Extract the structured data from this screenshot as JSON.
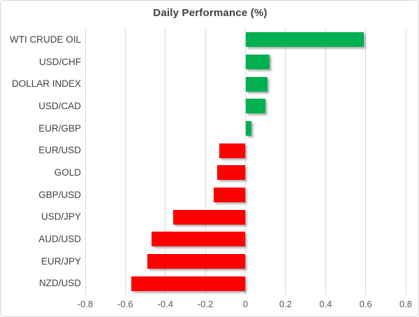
{
  "chart_data": {
    "type": "bar",
    "orientation": "horizontal",
    "title": "Daily Performance (%)",
    "categories": [
      "WTI CRUDE OIL",
      "USD/CHF",
      "DOLLAR INDEX",
      "USD/CAD",
      "EUR/GBP",
      "EUR/USD",
      "GOLD",
      "GBP/USD",
      "USD/JPY",
      "AUD/USD",
      "EUR/JPY",
      "NZD/USD"
    ],
    "values": [
      0.59,
      0.12,
      0.11,
      0.1,
      0.03,
      -0.13,
      -0.14,
      -0.16,
      -0.36,
      -0.47,
      -0.49,
      -0.57
    ],
    "xlim": [
      -0.8,
      0.8
    ],
    "xtick_values": [
      -0.8,
      -0.6,
      -0.4,
      -0.2,
      0,
      0.2,
      0.4,
      0.6,
      0.8
    ],
    "xtick_labels": [
      "-0.8",
      "-0.6",
      "-0.4",
      "-0.2",
      "0",
      "0.2",
      "0.4",
      "0.6",
      "0.8"
    ],
    "xlabel": "",
    "ylabel": "",
    "grid": true,
    "legend": "none",
    "positive_color": "#00b050",
    "negative_color": "#ff0000",
    "gridline_color": "#d9d9d9",
    "title_color": "#404040"
  }
}
